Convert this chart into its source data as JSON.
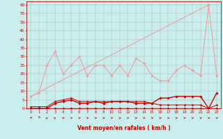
{
  "xlabel": "Vent moyen/en rafales ( km/h )",
  "xlim": [
    -0.5,
    23.5
  ],
  "ylim": [
    0,
    62
  ],
  "yticks": [
    0,
    5,
    10,
    15,
    20,
    25,
    30,
    35,
    40,
    45,
    50,
    55,
    60
  ],
  "xticks": [
    0,
    1,
    2,
    3,
    4,
    5,
    6,
    7,
    8,
    9,
    10,
    11,
    12,
    13,
    14,
    15,
    16,
    17,
    18,
    19,
    20,
    21,
    22,
    23
  ],
  "bg_color": "#c8eeed",
  "grid_color": "#b0b0b0",
  "series": {
    "rafales_max": {
      "x": [
        0,
        1,
        2,
        3,
        4,
        5,
        6,
        7,
        8,
        9,
        10,
        11,
        12,
        13,
        14,
        15,
        16,
        17,
        18,
        19,
        20,
        21,
        22,
        23
      ],
      "y": [
        7,
        9,
        25,
        33,
        20,
        25,
        30,
        19,
        25,
        25,
        19,
        25,
        19,
        29,
        26,
        19,
        16,
        16,
        22,
        25,
        22,
        19,
        60,
        19
      ],
      "color": "#f0a0a0",
      "lw": 0.8,
      "marker": "D",
      "markersize": 1.8
    },
    "rafales_trend": {
      "x": [
        0,
        22
      ],
      "y": [
        7,
        60
      ],
      "color": "#f0a0a0",
      "lw": 0.8
    },
    "vent_moyen": {
      "x": [
        0,
        1,
        2,
        3,
        4,
        5,
        6,
        7,
        8,
        9,
        10,
        11,
        12,
        13,
        14,
        15,
        16,
        17,
        18,
        19,
        20,
        21,
        22,
        23
      ],
      "y": [
        0,
        0,
        0,
        3,
        4,
        5,
        3,
        3,
        4,
        3,
        4,
        4,
        4,
        3,
        3,
        3,
        6,
        6,
        7,
        7,
        7,
        7,
        0,
        9
      ],
      "color": "#cc0000",
      "lw": 1.0,
      "marker": "D",
      "markersize": 1.8
    },
    "vent_min": {
      "x": [
        0,
        1,
        2,
        3,
        4,
        5,
        6,
        7,
        8,
        9,
        10,
        11,
        12,
        13,
        14,
        15,
        16,
        17,
        18,
        19,
        20,
        21,
        22,
        23
      ],
      "y": [
        0,
        0,
        0,
        0,
        0,
        0,
        0,
        0,
        0,
        0,
        0,
        0,
        0,
        0,
        0,
        0,
        0,
        0,
        0,
        0,
        0,
        0,
        0,
        0
      ],
      "color": "#cc0000",
      "lw": 1.0,
      "marker": "D",
      "markersize": 1.8
    },
    "rafales_mid": {
      "x": [
        0,
        1,
        2,
        3,
        4,
        5,
        6,
        7,
        8,
        9,
        10,
        11,
        12,
        13,
        14,
        15,
        16,
        17,
        18,
        19,
        20,
        21,
        22,
        23
      ],
      "y": [
        1,
        1,
        1,
        4,
        5,
        6,
        4,
        4,
        4,
        4,
        4,
        4,
        4,
        4,
        4,
        3,
        2,
        2,
        2,
        2,
        2,
        2,
        0,
        2
      ],
      "color": "#cc0000",
      "lw": 0.7,
      "marker": "D",
      "markersize": 1.5
    }
  },
  "wind_arrows": {
    "x": [
      0,
      1,
      2,
      3,
      4,
      5,
      6,
      7,
      8,
      9,
      10,
      11,
      12,
      13,
      14,
      15,
      16,
      17,
      18,
      19,
      20,
      21,
      22,
      23
    ],
    "angles": [
      200,
      185,
      20,
      20,
      30,
      30,
      30,
      30,
      30,
      30,
      30,
      30,
      30,
      30,
      30,
      30,
      30,
      30,
      30,
      30,
      30,
      30,
      30,
      30
    ]
  }
}
